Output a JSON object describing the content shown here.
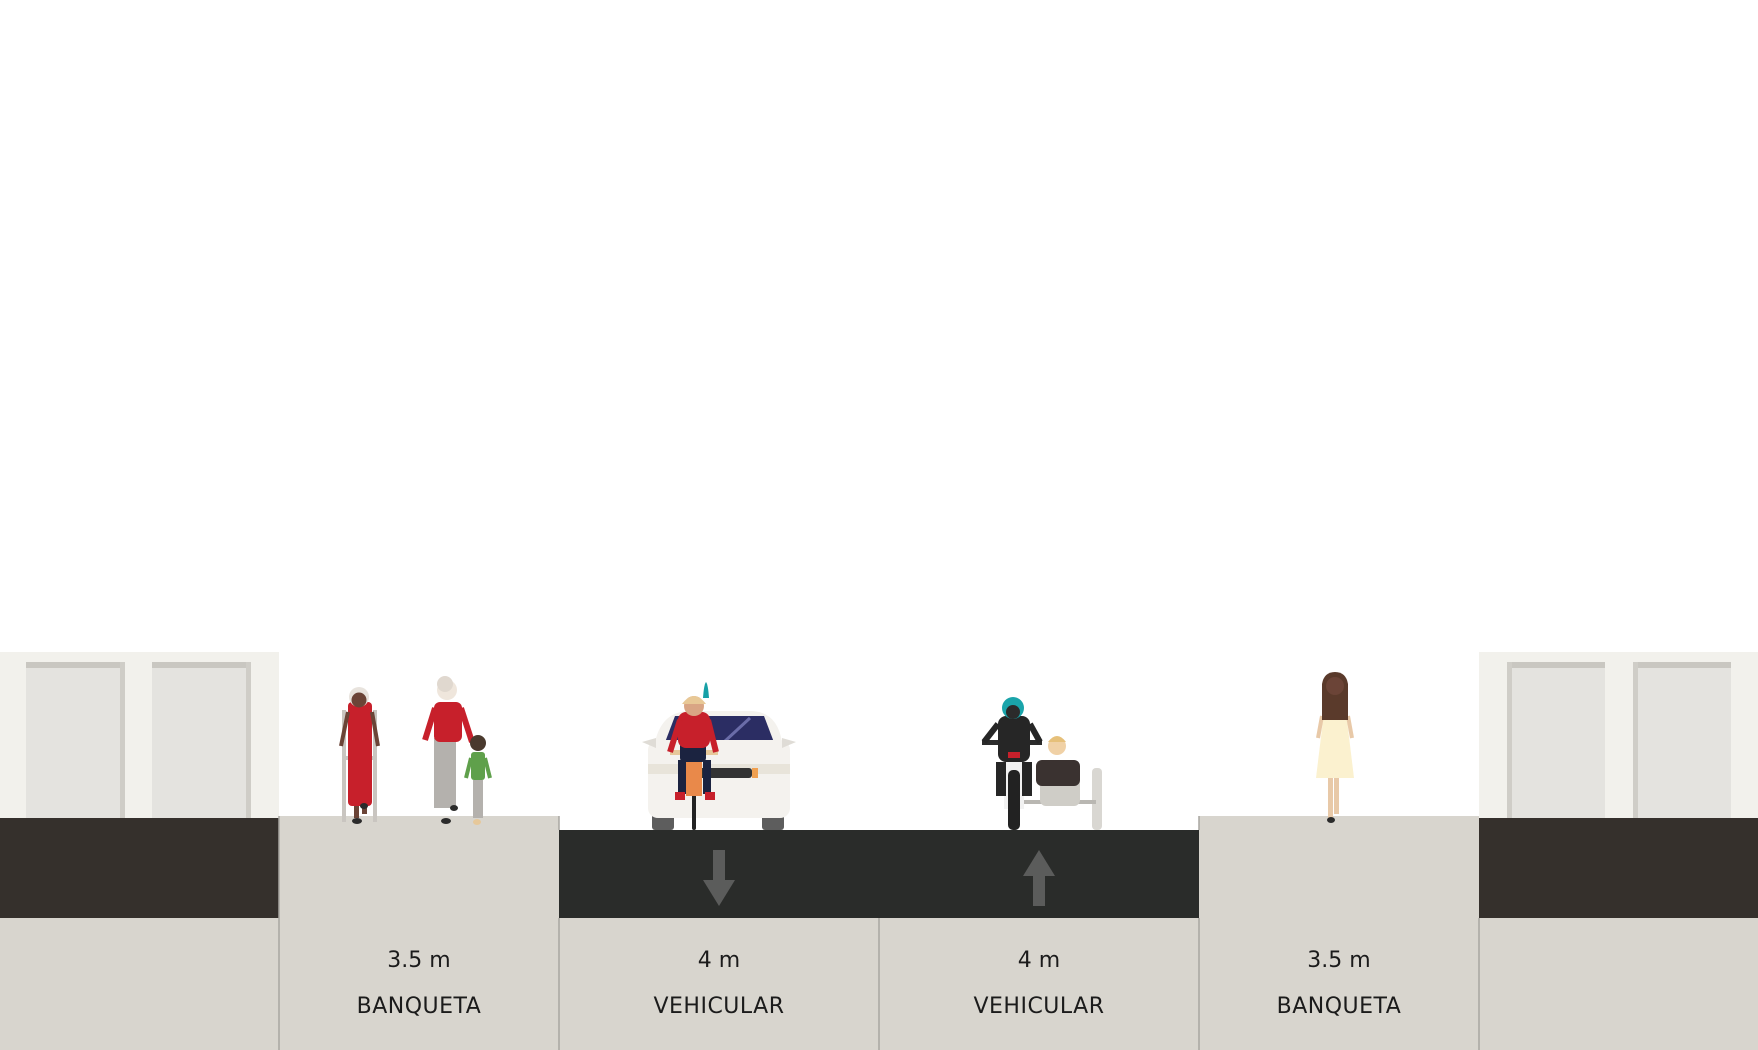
{
  "segments": [
    {
      "width": "3.5 m",
      "name": "BANQUETA"
    },
    {
      "width": "4 m",
      "name": "VEHICULAR",
      "direction": "down"
    },
    {
      "width": "4 m",
      "name": "VEHICULAR",
      "direction": "up"
    },
    {
      "width": "3.5 m",
      "name": "BANQUETA"
    }
  ],
  "colors": {
    "sky": "#ffffff",
    "sidewalk": "#d8d5ce",
    "roadway": "#2a2c2a",
    "building_base": "#35302c",
    "building_wall": "#f2f1ec",
    "door": "#e4e3df",
    "arrow": "#5b5c5b",
    "divider": "#a8a6a1"
  },
  "icons": [
    "building-left-icon",
    "building-right-icon",
    "pedestrian-walker-icon",
    "pedestrian-adult-child-icon",
    "car-icon",
    "cyclist-icon",
    "motorcycle-sidecar-icon",
    "pedestrian-woman-icon",
    "arrow-down-icon",
    "arrow-up-icon"
  ]
}
